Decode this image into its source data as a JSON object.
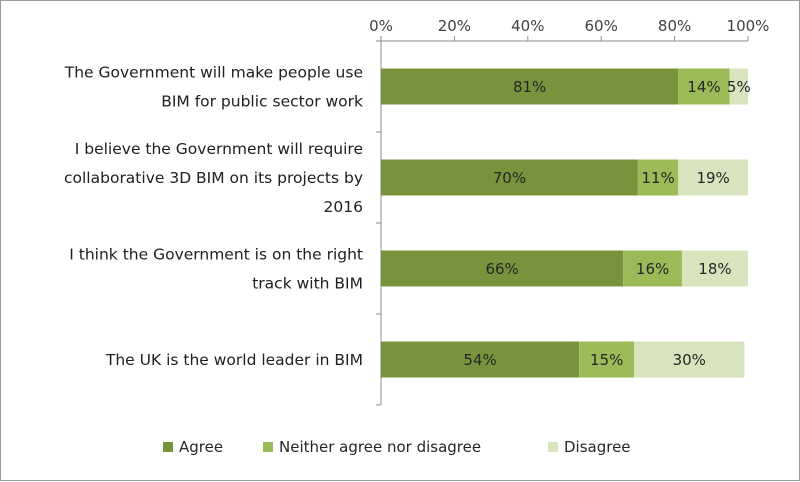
{
  "chart_data": {
    "type": "bar",
    "orientation": "horizontal",
    "stacked": true,
    "percent_stacked": true,
    "categories": [
      [
        "The Government will make people use",
        "BIM for public sector work"
      ],
      [
        "I believe the Government will require",
        "collaborative 3D BIM on its projects by",
        "2016"
      ],
      [
        "I think the Government is on the right",
        "track with BIM"
      ],
      [
        "The UK is the world leader in BIM"
      ]
    ],
    "series": [
      {
        "name": "Agree",
        "color": "#77933c",
        "values": [
          81,
          70,
          66,
          54
        ],
        "labels": [
          "81%",
          "70%",
          "66%",
          "54%"
        ]
      },
      {
        "name": "Neither agree nor disagree",
        "color": "#9bbb59",
        "values": [
          14,
          11,
          16,
          15
        ],
        "labels": [
          "14%",
          "11%",
          "16%",
          "15%"
        ]
      },
      {
        "name": "Disagree",
        "color": "#d7e4bd",
        "values": [
          5,
          19,
          18,
          30
        ],
        "labels": [
          "5%",
          "19%",
          "18%",
          "30%"
        ]
      }
    ],
    "x_ticks": [
      "0%",
      "20%",
      "40%",
      "60%",
      "80%",
      "100%"
    ],
    "xlim": [
      0,
      100
    ],
    "x_axis_position": "top",
    "grid": false,
    "legend_position": "bottom"
  }
}
